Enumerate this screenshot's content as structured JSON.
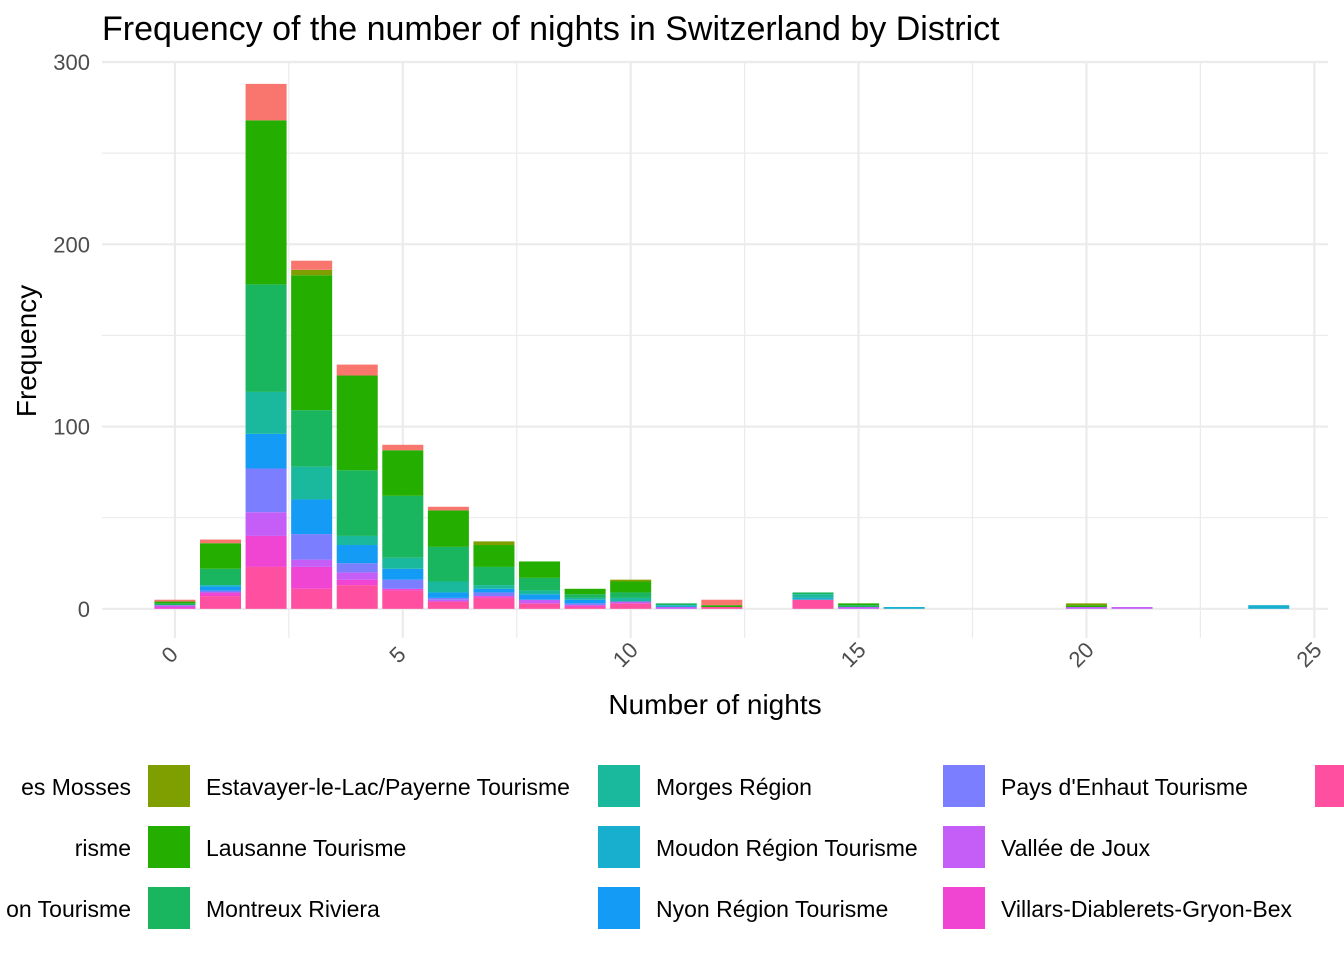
{
  "chart_data": {
    "type": "bar",
    "stacked": true,
    "title": "Frequency of the number of nights in Switzerland by District",
    "xlabel": "Number of nights",
    "ylabel": "Frequency",
    "xlim": [
      -1.6,
      25.3
    ],
    "ylim": [
      -16,
      300
    ],
    "x_ticks": [
      0,
      5,
      10,
      15,
      20,
      25
    ],
    "y_ticks": [
      0,
      100,
      200,
      300
    ],
    "grid": true,
    "legend_position": "bottom",
    "legend_entries": [
      {
        "label": "es Mosses",
        "color": "#F8766D"
      },
      {
        "label": "risme",
        "color": "#C49A00"
      },
      {
        "label": "on Tourisme",
        "color": "#53B400"
      },
      {
        "label": "Estavayer-le-Lac/Payerne Tourisme",
        "color": "#7F9F00"
      },
      {
        "label": "Lausanne Tourisme",
        "color": "#24AE00"
      },
      {
        "label": "Montreux Riviera",
        "color": "#19B55F"
      },
      {
        "label": "Morges Région",
        "color": "#1AB99D"
      },
      {
        "label": "Moudon Région Tourisme",
        "color": "#18AFCF"
      },
      {
        "label": "Nyon Région Tourisme",
        "color": "#149BF5"
      },
      {
        "label": "Pays d'Enhaut Tourisme",
        "color": "#7B7FFF"
      },
      {
        "label": "Vallée de Joux",
        "color": "#C45EF7"
      },
      {
        "label": "Villars-Diablerets-Gryon-Bex",
        "color": "#F045D2"
      },
      {
        "label": "",
        "color": "#FF4FA0"
      }
    ],
    "x": [
      0,
      1,
      2,
      3,
      4,
      5,
      6,
      7,
      8,
      9,
      10,
      11,
      12,
      14,
      15,
      16,
      20,
      21,
      24
    ],
    "series": [
      {
        "name": "es Mosses",
        "color": "#F8766D",
        "values": [
          1,
          2,
          20,
          5,
          6,
          3,
          2,
          0,
          0,
          0,
          0,
          0,
          3,
          0,
          0,
          0,
          0,
          0,
          0
        ]
      },
      {
        "name": "Estavayer-le-Lac/Payerne Tourisme",
        "color": "#7F9F00",
        "values": [
          0,
          0,
          0,
          3,
          0,
          0,
          0,
          2,
          0,
          0,
          1,
          0,
          0,
          0,
          0,
          0,
          1,
          0,
          0
        ]
      },
      {
        "name": "Lausanne Tourisme",
        "color": "#24AE00",
        "values": [
          1,
          14,
          90,
          74,
          52,
          25,
          20,
          12,
          9,
          3,
          6,
          0,
          1,
          0,
          1,
          0,
          1,
          0,
          0
        ]
      },
      {
        "name": "Montreux Riviera",
        "color": "#19B55F",
        "values": [
          1,
          9,
          59,
          31,
          36,
          34,
          19,
          10,
          7,
          2,
          3,
          1,
          0,
          1,
          1,
          0,
          0,
          0,
          0
        ]
      },
      {
        "name": "Morges Région",
        "color": "#1AB99D",
        "values": [
          0,
          0,
          23,
          18,
          5,
          6,
          6,
          2,
          2,
          1,
          2,
          0,
          0,
          2,
          0,
          0,
          0,
          0,
          0
        ]
      },
      {
        "name": "Moudon Région Tourisme",
        "color": "#18AFCF",
        "values": [
          0,
          1,
          0,
          0,
          0,
          0,
          0,
          0,
          0,
          0,
          0,
          1,
          0,
          1,
          0,
          1,
          0,
          0,
          2
        ]
      },
      {
        "name": "Nyon Région Tourisme",
        "color": "#149BF5",
        "values": [
          0,
          2,
          19,
          19,
          10,
          6,
          3,
          2,
          3,
          2,
          0,
          0,
          0,
          0,
          0,
          0,
          0,
          0,
          0
        ]
      },
      {
        "name": "Pays d'Enhaut Tourisme",
        "color": "#7B7FFF",
        "values": [
          0,
          1,
          24,
          14,
          5,
          5,
          1,
          2,
          0,
          1,
          0,
          0,
          0,
          0,
          0,
          0,
          0,
          0,
          0
        ]
      },
      {
        "name": "Vallée de Joux",
        "color": "#C45EF7",
        "values": [
          1,
          0,
          13,
          4,
          4,
          0,
          1,
          0,
          2,
          0,
          1,
          1,
          0,
          0,
          1,
          0,
          1,
          1,
          0
        ]
      },
      {
        "name": "Villars-Diablerets-Gryon-Bex",
        "color": "#F045D2",
        "values": [
          1,
          2,
          17,
          12,
          3,
          1,
          0,
          1,
          0,
          1,
          0,
          0,
          0,
          0,
          0,
          0,
          0,
          0,
          0
        ]
      },
      {
        "name": "",
        "color": "#FF4FA0",
        "values": [
          0,
          7,
          23,
          11,
          13,
          10,
          4,
          6,
          3,
          1,
          3,
          0,
          1,
          5,
          0,
          0,
          0,
          0,
          0
        ]
      }
    ]
  }
}
